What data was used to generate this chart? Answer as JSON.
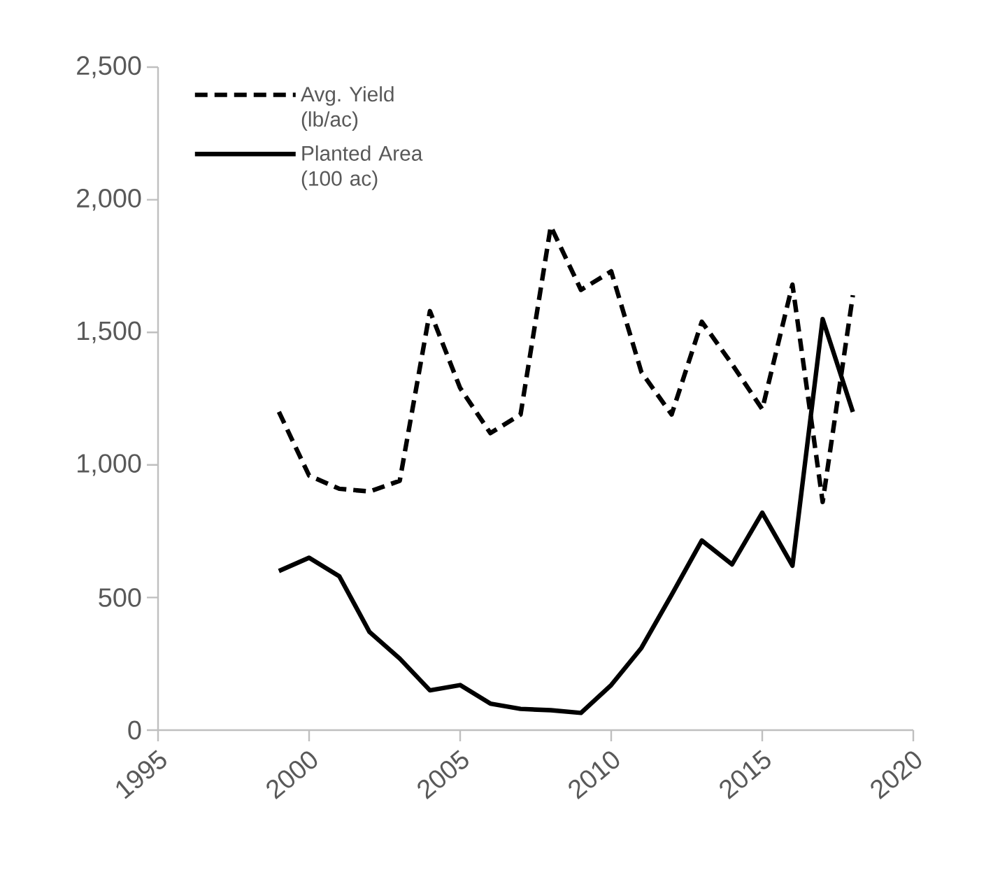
{
  "chart_data": {
    "type": "line",
    "x": [
      1999,
      2000,
      2001,
      2002,
      2003,
      2004,
      2005,
      2006,
      2007,
      2008,
      2009,
      2010,
      2011,
      2012,
      2013,
      2014,
      2015,
      2016,
      2017,
      2018
    ],
    "series": [
      {
        "name": "Avg. Yield (lb/ac)",
        "color": "#000000",
        "line_style": "dashed",
        "values": [
          1200,
          960,
          910,
          900,
          940,
          1580,
          1290,
          1120,
          1190,
          1900,
          1660,
          1730,
          1350,
          1190,
          1540,
          1380,
          1210,
          1680,
          860,
          1640
        ]
      },
      {
        "name": "Planted Area (100 ac)",
        "color": "#000000",
        "line_style": "solid",
        "values": [
          600,
          650,
          580,
          370,
          270,
          150,
          170,
          100,
          80,
          75,
          65,
          170,
          310,
          510,
          715,
          625,
          820,
          620,
          1550,
          1200
        ]
      }
    ],
    "xlim": [
      1995,
      2020
    ],
    "xticks": [
      1995,
      2000,
      2005,
      2010,
      2015,
      2020
    ],
    "ylim": [
      0,
      2500
    ],
    "yticks": [
      0,
      {
        "value": 500,
        "label": "500"
      },
      {
        "value": 1000,
        "label": "1,000"
      },
      {
        "value": 1500,
        "label": "1,500"
      },
      {
        "value": 2000,
        "label": "2,000"
      },
      {
        "value": 2500,
        "label": "2,500"
      }
    ],
    "grid": false,
    "legend": "top left",
    "marker": "none"
  }
}
